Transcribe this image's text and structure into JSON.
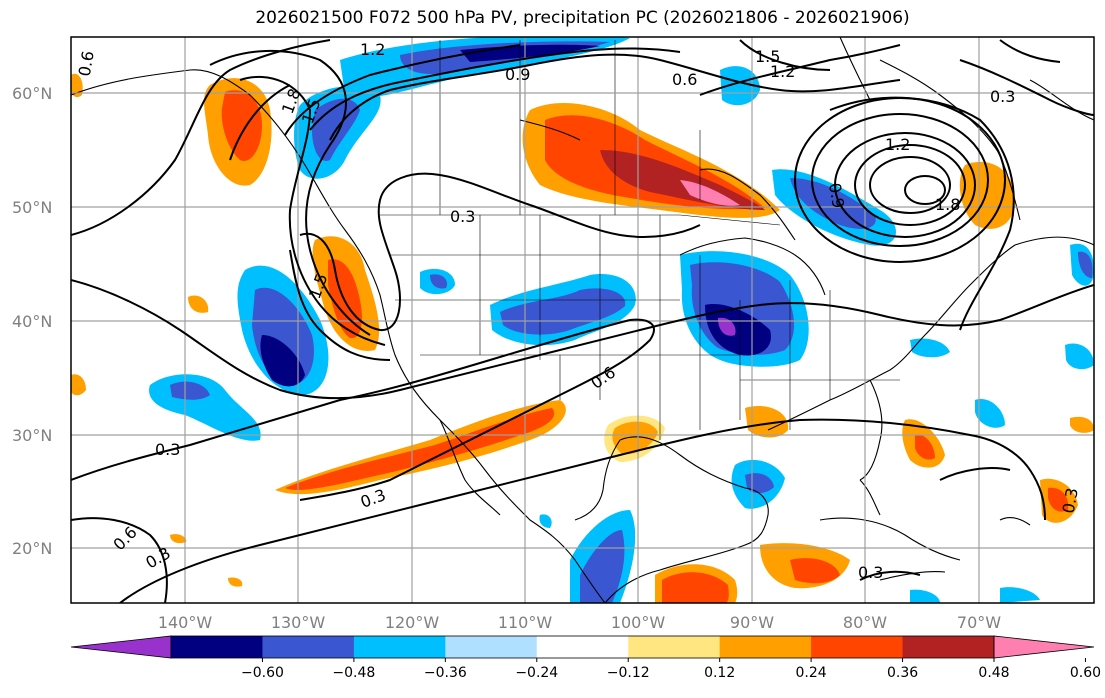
{
  "title": "2026021500 F072 500 hPa PV, precipitation PC (2026021806 - 2026021906)",
  "map": {
    "lat_ticks": [
      "60°N",
      "50°N",
      "40°N",
      "30°N",
      "20°N"
    ],
    "lon_ticks": [
      "140°W",
      "130°W",
      "120°W",
      "110°W",
      "100°W",
      "90°W",
      "80°W",
      "70°W"
    ],
    "contour_labels": [
      "0.6",
      "1.2",
      "0.9",
      "0.6",
      "1.5",
      "1.2",
      "0.3",
      "1.2",
      "0.9",
      "1.8",
      "1.8",
      "1.5",
      "0.3",
      "1.5",
      "0.6",
      "0.3",
      "0.3",
      "0.6",
      "0.3",
      "0.3",
      "0.3"
    ]
  },
  "colorbar": {
    "ticks": [
      "−0.60",
      "−0.48",
      "−0.36",
      "−0.24",
      "−0.12",
      "0.12",
      "0.24",
      "0.36",
      "0.48",
      "0.60"
    ],
    "colors": [
      "#9932cc",
      "#000080",
      "#3a56d0",
      "#00bfff",
      "#b0e0ff",
      "#ffffff",
      "#ffe680",
      "#ffa000",
      "#ff4500",
      "#b22222",
      "#ff80b0"
    ]
  }
}
